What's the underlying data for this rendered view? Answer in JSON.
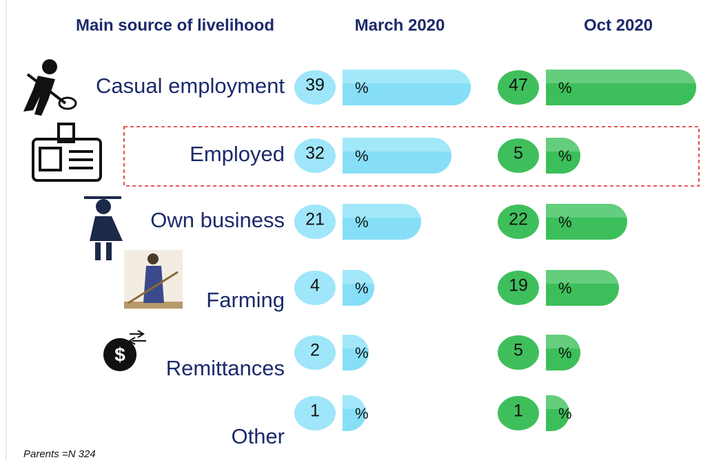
{
  "chart_data": {
    "type": "bar",
    "x_label": "Main source of livelihood",
    "categories": [
      "Casual employment",
      "Employed",
      "Own business",
      "Farming",
      "Remittances",
      "Other"
    ],
    "series": [
      {
        "name": "March 2020",
        "color": "#86dff7",
        "values": [
          39,
          32,
          21,
          4,
          2,
          1
        ]
      },
      {
        "name": "Oct 2020",
        "color": "#3cbf5a",
        "values": [
          47,
          5,
          22,
          19,
          5,
          1
        ]
      }
    ],
    "unit": "%",
    "footnote": "Parents =N 324"
  }
}
